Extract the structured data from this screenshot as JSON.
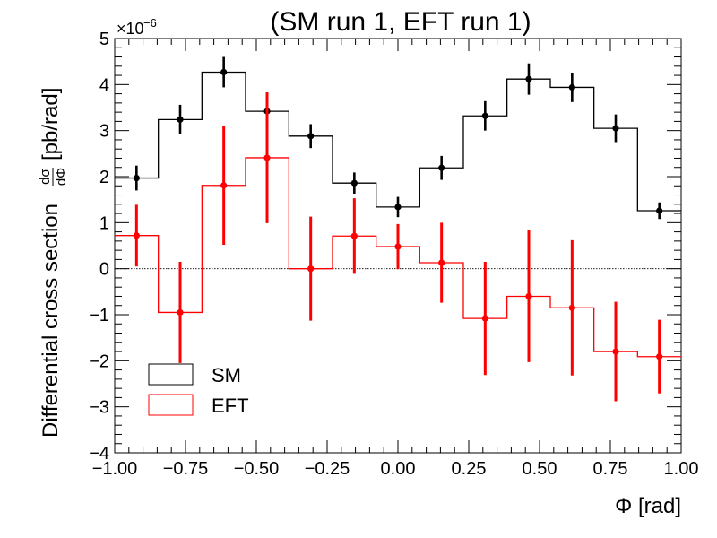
{
  "chart_data": {
    "type": "histogram",
    "title": "(SM run 1, EFT run 1)",
    "xlabel": "Φ [rad]",
    "ylabel_text": "Differential cross section",
    "ylabel_fraction": {
      "numerator": "dσ",
      "denominator": "dΦ"
    },
    "ylabel_unit": "[pb/rad]",
    "y_exponent_label": "×10",
    "y_exponent_power": "−6",
    "y_scale": 1e-06,
    "xlim": [
      -1.0,
      1.0
    ],
    "ylim": [
      -4,
      5
    ],
    "xticks": [
      -1.0,
      -0.75,
      -0.5,
      -0.25,
      0.0,
      0.25,
      0.5,
      0.75,
      1.0
    ],
    "xtick_labels": [
      "−1.00",
      "−0.75",
      "−0.50",
      "−0.25",
      "0.00",
      "0.25",
      "0.50",
      "0.75",
      "1.00"
    ],
    "yticks": [
      -4,
      -3,
      -2,
      -1,
      0,
      1,
      2,
      3,
      4,
      5
    ],
    "ytick_labels": [
      "−4",
      "−3",
      "−2",
      "−1",
      "0",
      "1",
      "2",
      "3",
      "4",
      "5"
    ],
    "bin_edges": [
      -1.0,
      -0.846,
      -0.692,
      -0.538,
      -0.385,
      -0.231,
      -0.077,
      0.077,
      0.231,
      0.385,
      0.538,
      0.692,
      0.846,
      1.0
    ],
    "bin_centers": [
      -0.923,
      -0.769,
      -0.615,
      -0.462,
      -0.308,
      -0.154,
      0.0,
      0.154,
      0.308,
      0.462,
      0.615,
      0.769,
      0.923
    ],
    "zero_line": true,
    "legend_position": "bottom-left",
    "series": [
      {
        "name": "SM",
        "color": "#000000",
        "values": [
          1.97,
          3.24,
          4.27,
          3.42,
          2.88,
          1.86,
          1.34,
          2.19,
          3.32,
          4.12,
          3.94,
          3.05,
          1.26
        ],
        "errors": [
          0.27,
          0.32,
          0.33,
          0.33,
          0.26,
          0.23,
          0.22,
          0.26,
          0.32,
          0.34,
          0.32,
          0.3,
          0.18
        ]
      },
      {
        "name": "EFT",
        "color": "#ff0000",
        "values": [
          0.72,
          -0.95,
          1.81,
          2.41,
          0.0,
          0.71,
          0.48,
          0.13,
          -1.08,
          -0.6,
          -0.85,
          -1.8,
          -1.91
        ],
        "errors": [
          0.67,
          1.1,
          1.29,
          1.42,
          1.13,
          0.82,
          0.49,
          0.87,
          1.23,
          1.43,
          1.47,
          1.08,
          0.8
        ]
      }
    ]
  }
}
